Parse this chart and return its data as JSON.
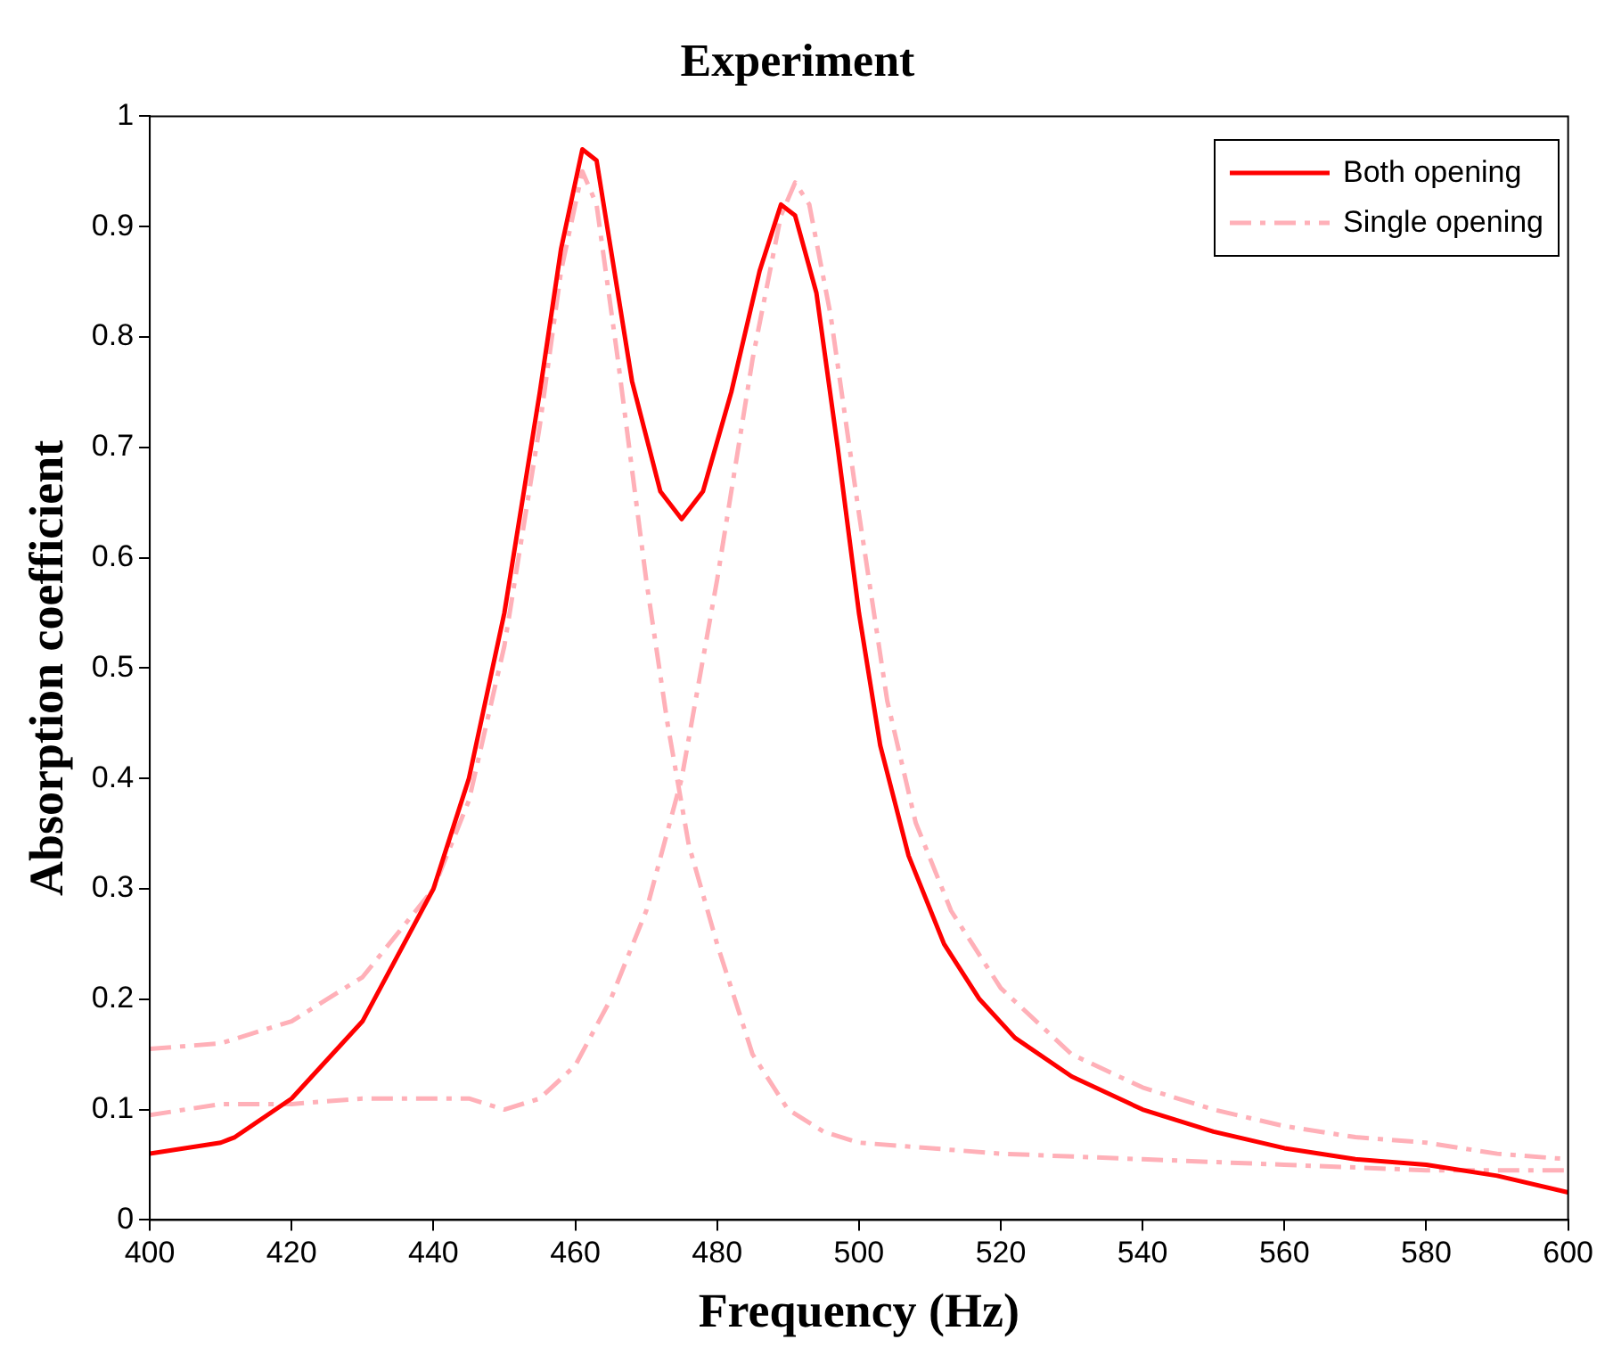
{
  "chart_data": {
    "type": "line",
    "title": "Experiment",
    "xlabel": "Frequency (Hz)",
    "ylabel": "Absorption coefficient",
    "xlim": [
      400,
      600
    ],
    "xticks": [
      400,
      420,
      440,
      460,
      480,
      500,
      520,
      540,
      560,
      580,
      600
    ],
    "ylim": [
      0,
      1
    ],
    "yticks": [
      0,
      0.1,
      0.2,
      0.3,
      0.4,
      0.5,
      0.6,
      0.7,
      0.8,
      0.9,
      1
    ],
    "grid": false,
    "legend": "top right",
    "marker": "none",
    "series": [
      {
        "name": "Both opening",
        "color": "#ff0000",
        "line_style": "solid",
        "x": [
          400,
          410,
          412,
          420,
          430,
          440,
          445,
          450,
          455,
          458,
          461,
          463,
          465,
          468,
          472,
          475,
          478,
          482,
          486,
          489,
          491,
          494,
          497,
          500,
          503,
          507,
          512,
          517,
          522,
          530,
          540,
          550,
          560,
          570,
          580,
          590,
          600
        ],
        "values": [
          0.06,
          0.07,
          0.075,
          0.11,
          0.18,
          0.3,
          0.4,
          0.55,
          0.75,
          0.88,
          0.97,
          0.96,
          0.88,
          0.76,
          0.66,
          0.635,
          0.66,
          0.75,
          0.86,
          0.92,
          0.91,
          0.84,
          0.7,
          0.55,
          0.43,
          0.33,
          0.25,
          0.2,
          0.165,
          0.13,
          0.1,
          0.08,
          0.065,
          0.055,
          0.05,
          0.04,
          0.025
        ]
      },
      {
        "name": "Single opening",
        "color": "#ffb0b8",
        "line_style": "dashed",
        "x": [
          400,
          410,
          420,
          430,
          440,
          445,
          450,
          455,
          458,
          461,
          463,
          466,
          470,
          473,
          476,
          480,
          485,
          490,
          495,
          500,
          520,
          540,
          560,
          580,
          600
        ],
        "values": [
          0.155,
          0.16,
          0.18,
          0.22,
          0.3,
          0.38,
          0.52,
          0.72,
          0.86,
          0.95,
          0.92,
          0.78,
          0.58,
          0.45,
          0.34,
          0.25,
          0.15,
          0.1,
          0.08,
          0.07,
          0.06,
          0.055,
          0.05,
          0.045,
          0.045
        ]
      },
      {
        "color": "#ffb0b8",
        "line_style": "dashed",
        "x": [
          400,
          410,
          420,
          430,
          440,
          445,
          450,
          455,
          460,
          465,
          470,
          475,
          480,
          485,
          489,
          491,
          493,
          496,
          500,
          504,
          508,
          513,
          520,
          530,
          540,
          550,
          560,
          570,
          580,
          590,
          600
        ],
        "values": [
          0.095,
          0.105,
          0.105,
          0.11,
          0.11,
          0.11,
          0.1,
          0.11,
          0.14,
          0.2,
          0.28,
          0.4,
          0.58,
          0.78,
          0.91,
          0.94,
          0.92,
          0.82,
          0.64,
          0.47,
          0.36,
          0.28,
          0.21,
          0.15,
          0.12,
          0.1,
          0.085,
          0.075,
          0.07,
          0.06,
          0.055
        ]
      }
    ]
  }
}
